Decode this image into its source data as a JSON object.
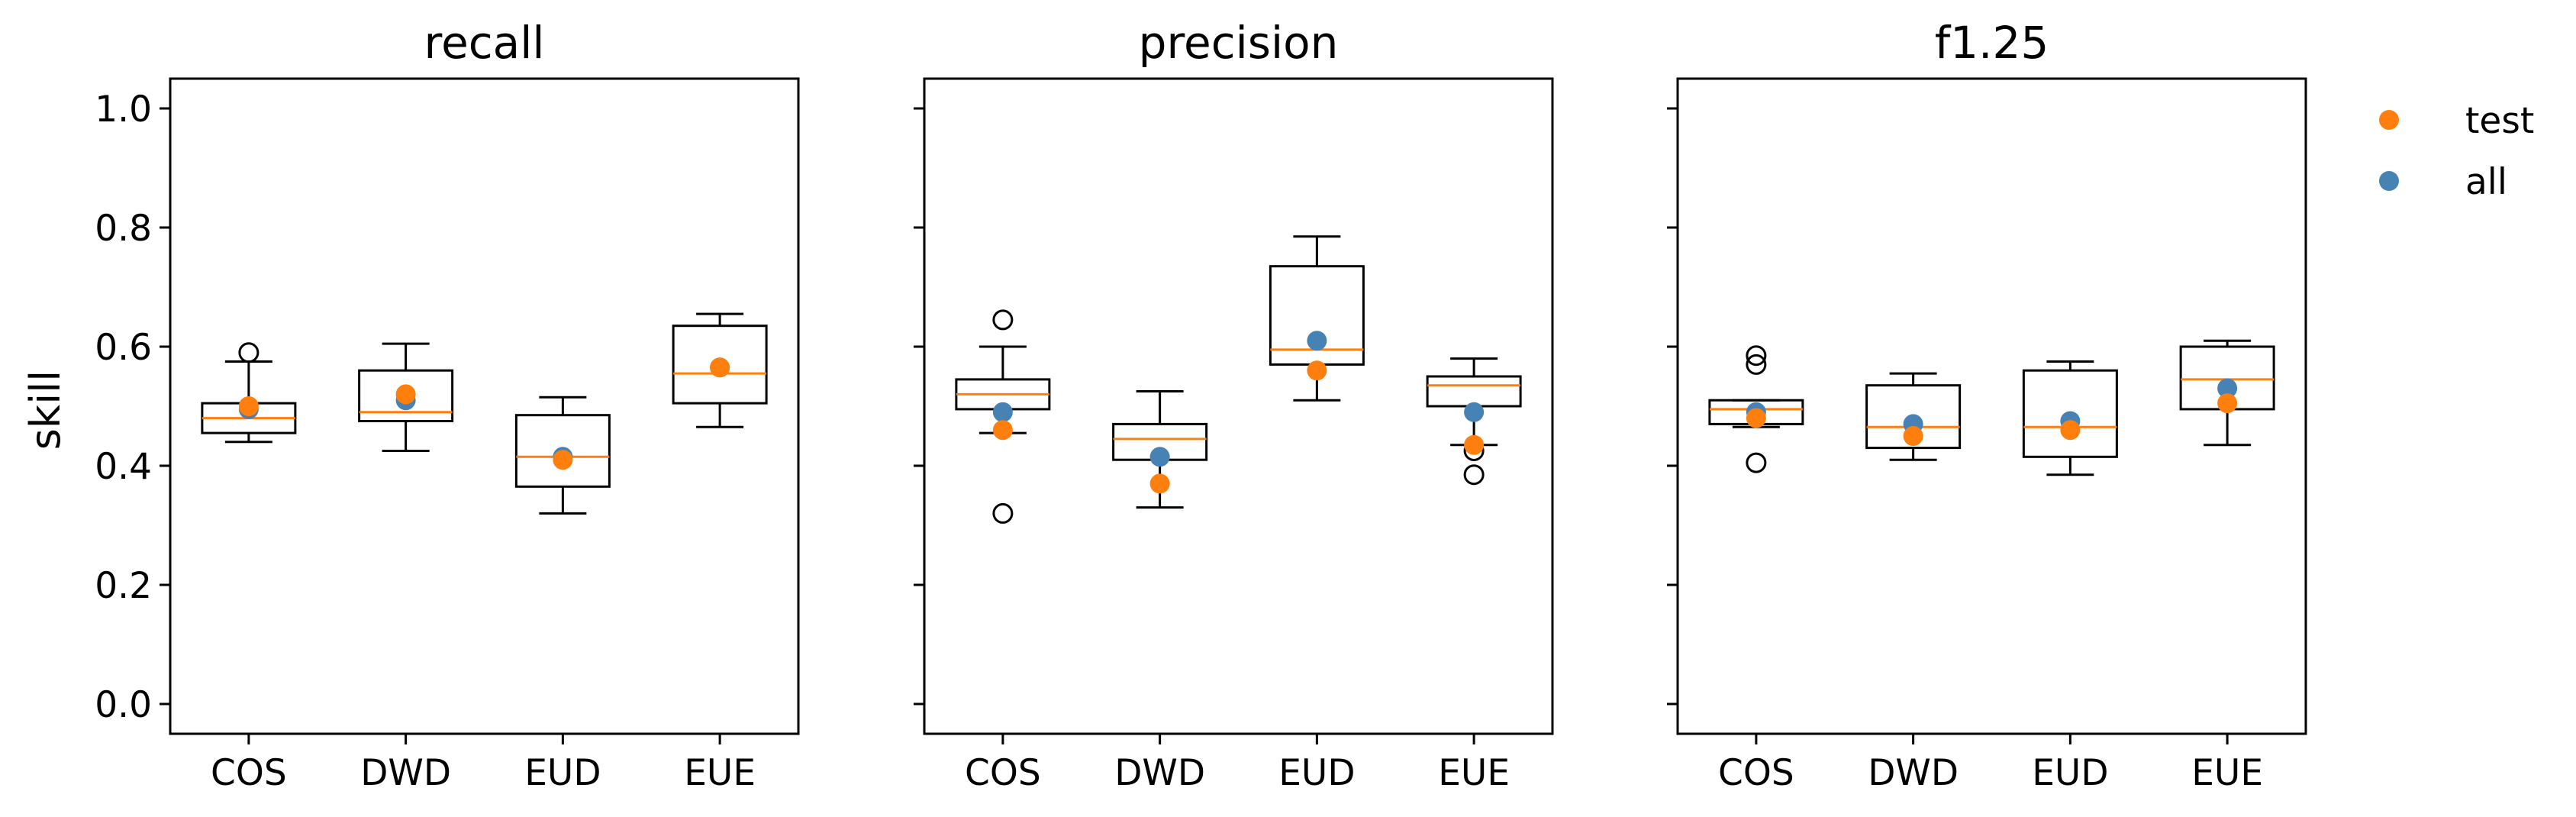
{
  "chart_data": {
    "type": "box",
    "ylabel": "skill",
    "ylim": [
      -0.05,
      1.05
    ],
    "yticks": [
      "0.0",
      "0.2",
      "0.4",
      "0.6",
      "0.8",
      "1.0"
    ],
    "categories": [
      "COS",
      "DWD",
      "EUD",
      "EUE"
    ],
    "legend": {
      "placement": "top-right outside",
      "items": [
        {
          "label": "test",
          "color": "#ff7f0e"
        },
        {
          "label": "all",
          "color": "#4682b4"
        }
      ]
    },
    "colors": {
      "median": "#ff7f0e",
      "test": "#ff7f0e",
      "all": "#4682b4",
      "box": "#000000"
    },
    "panels": [
      {
        "title": "recall",
        "boxes": [
          {
            "category": "COS",
            "whislo": 0.44,
            "q1": 0.455,
            "med": 0.48,
            "q3": 0.505,
            "whishi": 0.575,
            "fliers": [
              0.59
            ]
          },
          {
            "category": "DWD",
            "whislo": 0.425,
            "q1": 0.475,
            "med": 0.49,
            "q3": 0.56,
            "whishi": 0.605,
            "fliers": []
          },
          {
            "category": "EUD",
            "whislo": 0.32,
            "q1": 0.365,
            "med": 0.415,
            "q3": 0.485,
            "whishi": 0.515,
            "fliers": []
          },
          {
            "category": "EUE",
            "whislo": 0.465,
            "q1": 0.505,
            "med": 0.555,
            "q3": 0.635,
            "whishi": 0.655,
            "fliers": []
          }
        ],
        "all": [
          0.495,
          0.51,
          0.415,
          0.565
        ],
        "test": [
          0.5,
          0.52,
          0.41,
          0.565
        ]
      },
      {
        "title": "precision",
        "boxes": [
          {
            "category": "COS",
            "whislo": 0.455,
            "q1": 0.495,
            "med": 0.52,
            "q3": 0.545,
            "whishi": 0.6,
            "fliers": [
              0.645,
              0.32
            ]
          },
          {
            "category": "DWD",
            "whislo": 0.33,
            "q1": 0.41,
            "med": 0.445,
            "q3": 0.47,
            "whishi": 0.525,
            "fliers": []
          },
          {
            "category": "EUD",
            "whislo": 0.51,
            "q1": 0.57,
            "med": 0.595,
            "q3": 0.735,
            "whishi": 0.785,
            "fliers": []
          },
          {
            "category": "EUE",
            "whislo": 0.435,
            "q1": 0.5,
            "med": 0.535,
            "q3": 0.55,
            "whishi": 0.58,
            "fliers": [
              0.425,
              0.385
            ]
          }
        ],
        "all": [
          0.49,
          0.415,
          0.61,
          0.49
        ],
        "test": [
          0.46,
          0.37,
          0.56,
          0.435
        ]
      },
      {
        "title": "f1.25",
        "boxes": [
          {
            "category": "COS",
            "whislo": 0.465,
            "q1": 0.47,
            "med": 0.495,
            "q3": 0.51,
            "whishi": 0.51,
            "fliers": [
              0.585,
              0.57,
              0.405
            ]
          },
          {
            "category": "DWD",
            "whislo": 0.41,
            "q1": 0.43,
            "med": 0.465,
            "q3": 0.535,
            "whishi": 0.555,
            "fliers": []
          },
          {
            "category": "EUD",
            "whislo": 0.385,
            "q1": 0.415,
            "med": 0.465,
            "q3": 0.56,
            "whishi": 0.575,
            "fliers": []
          },
          {
            "category": "EUE",
            "whislo": 0.435,
            "q1": 0.495,
            "med": 0.545,
            "q3": 0.6,
            "whishi": 0.61,
            "fliers": []
          }
        ],
        "all": [
          0.49,
          0.47,
          0.475,
          0.53
        ],
        "test": [
          0.48,
          0.45,
          0.46,
          0.505
        ]
      }
    ]
  }
}
